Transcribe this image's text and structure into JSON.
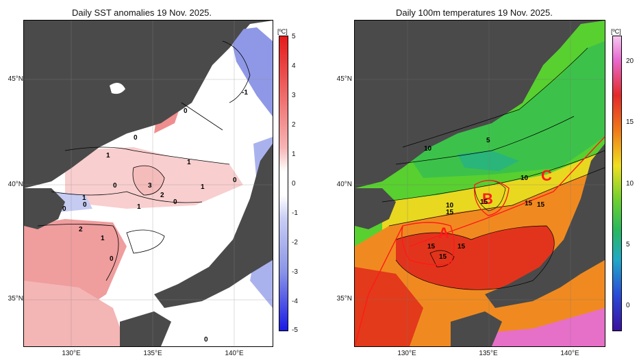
{
  "left_panel": {
    "title": "Daily SST anomalies 19 Nov. 2025.",
    "unit": "[ºC]",
    "colorbar_ticks": [
      "5",
      "4",
      "3",
      "2",
      "1",
      "0",
      "-1",
      "-2",
      "-3",
      "-4",
      "-5"
    ],
    "contour_labels": [
      "-1",
      "0",
      "0",
      "1",
      "1",
      "1",
      "0",
      "0",
      "3",
      "2",
      "0",
      "1",
      "1",
      "0",
      "0",
      "2",
      "1",
      "0",
      "0"
    ],
    "colors": {
      "warm": "#e04848",
      "cool": "#4a5ad8",
      "land": "#4a4a4a"
    }
  },
  "right_panel": {
    "title": "Daily 100m temperatures 19 Nov. 2025.",
    "unit": "[ºC]",
    "colorbar_ticks": [
      "20",
      "15",
      "10",
      "5",
      "0"
    ],
    "contour_labels": [
      "10",
      "5",
      "10",
      "10",
      "15",
      "15",
      "15",
      "15",
      "15",
      "15",
      "15"
    ],
    "regions": [
      "A",
      "B",
      "C"
    ],
    "colors": {
      "warm": "#e8341e",
      "cool": "#38c838",
      "region": "#ff1a1a"
    }
  },
  "axes": {
    "lat_labels": [
      "45°N",
      "40°N",
      "35°N"
    ],
    "lon_labels": [
      "130°E",
      "135°E",
      "140°E"
    ]
  }
}
